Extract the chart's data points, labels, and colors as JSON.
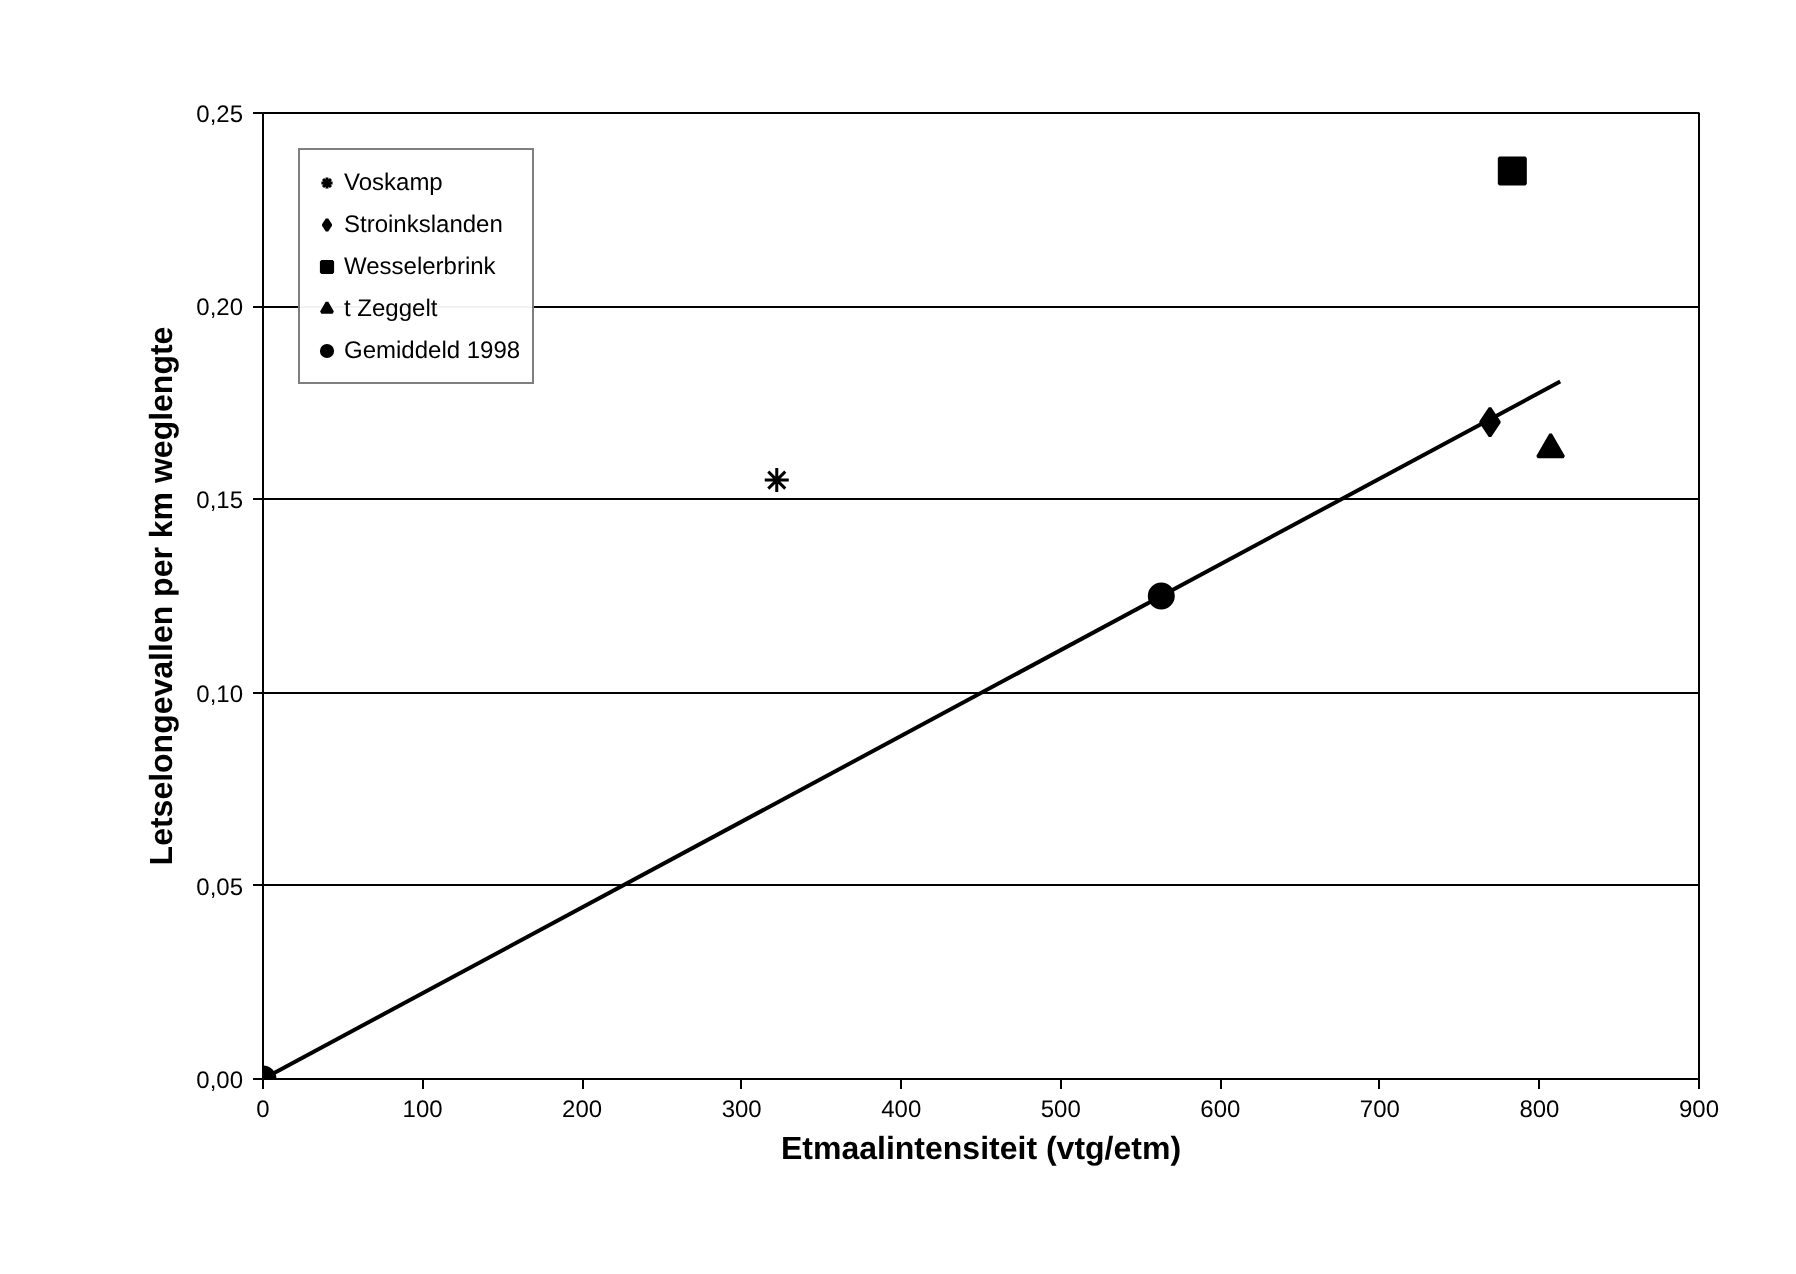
{
  "chart_data": {
    "type": "scatter",
    "xlabel": "Etmaalintensiteit (vtg/etm)",
    "ylabel": "Letselongevallen per km weglengte",
    "xlim": [
      0,
      900
    ],
    "xticks": [
      0,
      100,
      200,
      300,
      400,
      500,
      600,
      700,
      800,
      900
    ],
    "ylim": [
      0,
      0.25
    ],
    "yticks": [
      {
        "value": 0,
        "label": "0,00"
      },
      {
        "value": 0.05,
        "label": "0,05"
      },
      {
        "value": 0.1,
        "label": "0,10"
      },
      {
        "value": 0.15,
        "label": "0,15"
      },
      {
        "value": 0.2,
        "label": "0,20"
      },
      {
        "value": 0.25,
        "label": "0,25"
      }
    ],
    "grid": "y",
    "legend": "top left",
    "series": [
      {
        "type": "line",
        "color": "#000000",
        "x": [
          0,
          813
        ],
        "values": [
          0,
          0.1805
        ],
        "marker": "none",
        "line_style": "solid"
      },
      {
        "name": "Voskamp",
        "color": "#000000",
        "x": [
          322
        ],
        "values": [
          0.155
        ],
        "marker": "cross"
      },
      {
        "name": "Stroinkslanden",
        "color": "#000000",
        "x": [
          769
        ],
        "values": [
          0.17
        ],
        "marker": "diamond"
      },
      {
        "name": "Wesselerbrink",
        "color": "#000000",
        "x": [
          783
        ],
        "values": [
          0.235
        ],
        "marker": "square"
      },
      {
        "name": "t Zeggelt",
        "color": "#000000",
        "x": [
          807
        ],
        "values": [
          0.163
        ],
        "marker": "triangle"
      },
      {
        "name": "Gemiddeld 1998",
        "color": "#000000",
        "x": [
          0,
          563
        ],
        "values": [
          0,
          0.125
        ],
        "marker": "circle"
      }
    ]
  }
}
